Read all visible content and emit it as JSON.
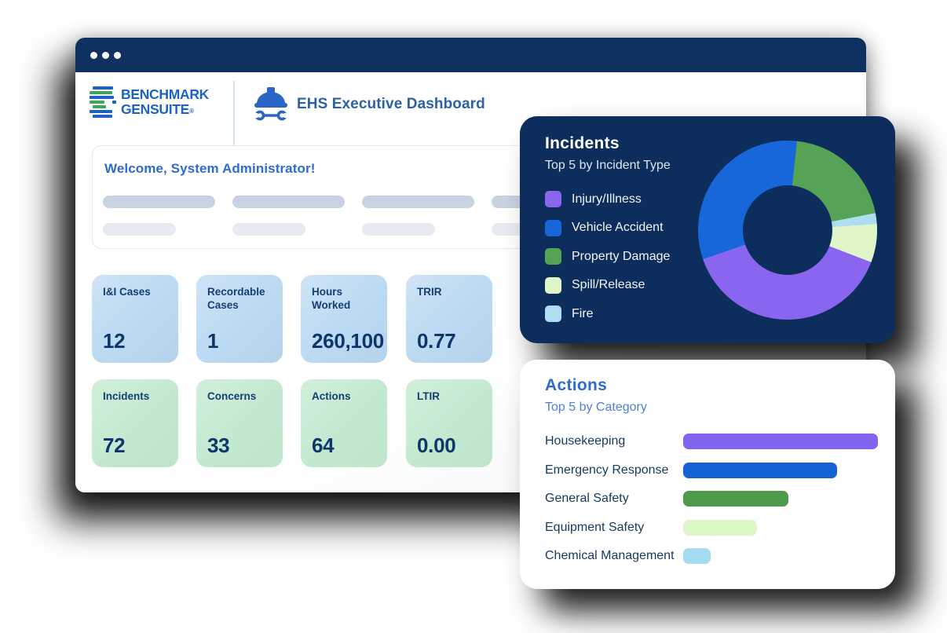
{
  "brand": {
    "line1": "BENCHMARK",
    "line2": "GENSUITE",
    "registered": "®"
  },
  "header": {
    "title": "EHS Executive Dashboard"
  },
  "welcome": {
    "title": "Welcome, System Administrator!"
  },
  "kpis": {
    "row1": [
      {
        "label": "I&I Cases",
        "value": "12"
      },
      {
        "label": "Recordable Cases",
        "value": "1"
      },
      {
        "label": "Hours Worked",
        "value": "260,100"
      },
      {
        "label": "TRIR",
        "value": "0.77"
      }
    ],
    "row2": [
      {
        "label": "Incidents",
        "value": "72"
      },
      {
        "label": "Concerns",
        "value": "33"
      },
      {
        "label": "Actions",
        "value": "64"
      },
      {
        "label": "LTIR",
        "value": "0.00"
      }
    ]
  },
  "incidents_card": {
    "title": "Incidents",
    "subtitle": "Top 5 by Incident Type",
    "legend": [
      {
        "label": "Injury/Illness",
        "color": "#8a66f0"
      },
      {
        "label": "Vehicle Accident",
        "color": "#1766da"
      },
      {
        "label": "Property Damage",
        "color": "#57a355"
      },
      {
        "label": "Spill/Release",
        "color": "#e0f6c8"
      },
      {
        "label": "Fire",
        "color": "#aedcf0"
      }
    ]
  },
  "actions_card": {
    "title": "Actions",
    "subtitle": "Top 5 by Category",
    "bars": [
      {
        "label": "Housekeeping",
        "color": "#8165f0",
        "width_pct": 100
      },
      {
        "label": "Emergency Response",
        "color": "#1561d6",
        "width_pct": 79
      },
      {
        "label": "General Safety",
        "color": "#4d9a4b",
        "width_pct": 54
      },
      {
        "label": "Equipment Safety",
        "color": "#ddf6c5",
        "width_pct": 38
      },
      {
        "label": "Chemical Management",
        "color": "#a5dcf2",
        "width_pct": 14
      }
    ]
  },
  "chart_data": [
    {
      "type": "pie",
      "donut": true,
      "title": "Incidents",
      "subtitle": "Top 5 by Incident Type",
      "labels": [
        "Injury/Illness",
        "Vehicle Accident",
        "Property Damage",
        "Spill/Release",
        "Fire"
      ],
      "values_pct": [
        39,
        32,
        20,
        7,
        2
      ],
      "colors": [
        "#8a66f0",
        "#1766da",
        "#57a355",
        "#e0f6c8",
        "#aedcf0"
      ],
      "legend_position": "left",
      "rotation_deg": 6,
      "segments_clockwise_from_top": [
        {
          "label": "Property Damage",
          "deg": 73,
          "color": "#57a355"
        },
        {
          "label": "Fire",
          "deg": 7,
          "color": "#aedcf0"
        },
        {
          "label": "Spill/Release",
          "deg": 25,
          "color": "#e0f6c8"
        },
        {
          "label": "Injury/Illness",
          "deg": 140,
          "color": "#8a66f0"
        },
        {
          "label": "Vehicle Accident",
          "deg": 115,
          "color": "#1766da"
        }
      ]
    },
    {
      "type": "bar",
      "orientation": "horizontal",
      "title": "Actions",
      "subtitle": "Top 5 by Category",
      "categories": [
        "Housekeeping",
        "Emergency Response",
        "General Safety",
        "Equipment Safety",
        "Chemical Management"
      ],
      "values_relative_pct": [
        100,
        79,
        54,
        38,
        14
      ],
      "colors": [
        "#8165f0",
        "#1561d6",
        "#4d9a4b",
        "#ddf6c5",
        "#a5dcf2"
      ],
      "grid": false,
      "axis_labels_shown": false
    }
  ],
  "colors": {
    "titlebar_navy": "#0f3160",
    "incidents_card_navy": "#0d2d5c",
    "brand_blue": "#1a63c5",
    "brand_green": "#3fa45c",
    "accent_blue": "#2e6bd0",
    "kpi_blue_bg": "#c3dcf2",
    "kpi_green_bg": "#c8ecd4",
    "kpi_text_navy": "#0e366b"
  }
}
